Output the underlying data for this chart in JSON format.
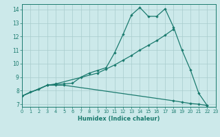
{
  "bg_color": "#cce9ea",
  "line_color": "#1a7a6e",
  "grid_color": "#a8cccc",
  "xlabel": "Humidex (Indice chaleur)",
  "xlim": [
    0,
    23
  ],
  "ylim": [
    6.8,
    14.4
  ],
  "xticks": [
    0,
    1,
    2,
    3,
    4,
    5,
    6,
    7,
    8,
    9,
    10,
    11,
    12,
    13,
    14,
    15,
    16,
    17,
    18,
    19,
    20,
    21,
    22,
    23
  ],
  "yticks": [
    7,
    8,
    9,
    10,
    11,
    12,
    13,
    14
  ],
  "line1_x": [
    0,
    1,
    2,
    3,
    4,
    5,
    6,
    7,
    8,
    9,
    10,
    11,
    12,
    13,
    14,
    15,
    16,
    17,
    18,
    19,
    20,
    21,
    22
  ],
  "line1_y": [
    7.6,
    7.9,
    8.1,
    8.4,
    8.45,
    8.5,
    8.55,
    9.0,
    9.3,
    9.5,
    9.7,
    10.8,
    12.15,
    13.6,
    14.15,
    13.5,
    13.5,
    14.05,
    12.7,
    11.0,
    9.55,
    7.8,
    6.9
  ],
  "line2_x": [
    0,
    3,
    4,
    9,
    10,
    11,
    12,
    13,
    14,
    15,
    16,
    17,
    18
  ],
  "line2_y": [
    7.6,
    8.4,
    8.5,
    9.3,
    9.6,
    9.9,
    10.25,
    10.6,
    11.0,
    11.35,
    11.7,
    12.1,
    12.55
  ],
  "line3_x": [
    0,
    3,
    4,
    5,
    18,
    19,
    20,
    21,
    22
  ],
  "line3_y": [
    7.6,
    8.4,
    8.4,
    8.4,
    7.25,
    7.15,
    7.05,
    7.0,
    6.9
  ]
}
